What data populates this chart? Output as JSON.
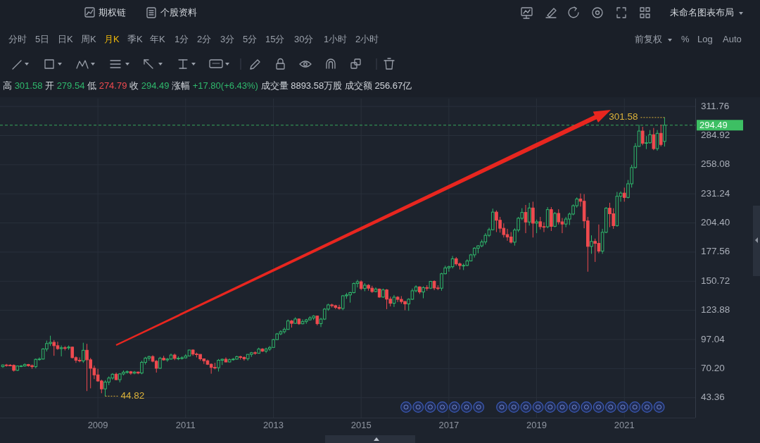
{
  "chart_data": {
    "type": "candlestick",
    "subtitle": "高 301.58 开 279.54 低 274.79 收 294.49 涨幅 +17.80(+6.43%) 成交量 8893.58万股 成交额 256.67亿",
    "x": [
      "2006-11",
      "2006-12",
      "2007-01",
      "2007-02",
      "2007-03",
      "2007-04",
      "2007-05",
      "2007-06",
      "2007-07",
      "2007-08",
      "2007-09",
      "2007-10",
      "2007-11",
      "2007-12",
      "2008-01",
      "2008-02",
      "2008-03",
      "2008-04",
      "2008-05",
      "2008-06",
      "2008-07",
      "2008-08",
      "2008-09",
      "2008-10",
      "2008-11",
      "2008-12",
      "2009-01",
      "2009-02",
      "2009-03",
      "2009-04",
      "2009-05",
      "2009-06",
      "2009-07",
      "2009-08",
      "2009-09",
      "2009-10",
      "2009-11",
      "2009-12",
      "2010-01",
      "2010-02",
      "2010-03",
      "2010-04",
      "2010-05",
      "2010-06",
      "2010-07",
      "2010-08",
      "2010-09",
      "2010-10",
      "2010-11",
      "2010-12",
      "2011-01",
      "2011-02",
      "2011-03",
      "2011-04",
      "2011-05",
      "2011-06",
      "2011-07",
      "2011-08",
      "2011-09",
      "2011-10",
      "2011-11",
      "2011-12",
      "2012-01",
      "2012-02",
      "2012-03",
      "2012-04",
      "2012-05",
      "2012-06",
      "2012-07",
      "2012-08",
      "2012-09",
      "2012-10",
      "2012-11",
      "2012-12",
      "2013-01",
      "2013-02",
      "2013-03",
      "2013-04",
      "2013-05",
      "2013-06",
      "2013-07",
      "2013-08",
      "2013-09",
      "2013-10",
      "2013-11",
      "2013-12",
      "2014-01",
      "2014-02",
      "2014-03",
      "2014-04",
      "2014-05",
      "2014-06",
      "2014-07",
      "2014-08",
      "2014-09",
      "2014-10",
      "2014-11",
      "2014-12",
      "2015-01",
      "2015-02",
      "2015-03",
      "2015-04",
      "2015-05",
      "2015-06",
      "2015-07",
      "2015-08",
      "2015-09",
      "2015-10",
      "2015-11",
      "2015-12",
      "2016-01",
      "2016-02",
      "2016-03",
      "2016-04",
      "2016-05",
      "2016-06",
      "2016-07",
      "2016-08",
      "2016-09",
      "2016-10",
      "2016-11",
      "2016-12",
      "2017-01",
      "2017-02",
      "2017-03",
      "2017-04",
      "2017-05",
      "2017-06",
      "2017-07",
      "2017-08",
      "2017-09",
      "2017-10",
      "2017-11",
      "2017-12",
      "2018-01",
      "2018-02",
      "2018-03",
      "2018-04",
      "2018-05",
      "2018-06",
      "2018-07",
      "2018-08",
      "2018-09",
      "2018-10",
      "2018-11",
      "2018-12",
      "2019-01",
      "2019-02",
      "2019-03",
      "2019-04",
      "2019-05",
      "2019-06",
      "2019-07",
      "2019-08",
      "2019-09",
      "2019-10",
      "2019-11",
      "2019-12",
      "2020-01",
      "2020-02",
      "2020-03",
      "2020-04",
      "2020-05",
      "2020-06",
      "2020-07",
      "2020-08",
      "2020-09",
      "2020-10",
      "2020-11",
      "2020-12",
      "2021-01",
      "2021-02",
      "2021-03",
      "2021-04",
      "2021-05",
      "2021-06",
      "2021-07",
      "2021-08",
      "2021-09",
      "2021-10",
      "2021-11",
      "2021-12"
    ],
    "ohlc": [
      [
        72.0,
        74.0,
        71.0,
        73.5
      ],
      [
        73.5,
        74.5,
        72.0,
        73.3
      ],
      [
        73.3,
        74.3,
        72.5,
        73.2
      ],
      [
        73.2,
        74.0,
        67.5,
        68.6
      ],
      [
        68.6,
        73.0,
        68.0,
        72.6
      ],
      [
        72.6,
        73.5,
        71.5,
        72.6
      ],
      [
        72.6,
        75.0,
        72.0,
        73.9
      ],
      [
        73.9,
        74.5,
        72.0,
        72.9
      ],
      [
        72.9,
        74.0,
        70.0,
        72.0
      ],
      [
        72.0,
        79.5,
        70.5,
        78.7
      ],
      [
        78.7,
        80.5,
        77.5,
        79.0
      ],
      [
        79.0,
        89.0,
        78.5,
        88.3
      ],
      [
        88.3,
        96.0,
        86.0,
        93.3
      ],
      [
        93.3,
        100.5,
        91.0,
        94.4
      ],
      [
        94.4,
        96.5,
        82.0,
        91.3
      ],
      [
        91.3,
        95.0,
        87.5,
        88.6
      ],
      [
        88.6,
        91.5,
        81.5,
        89.4
      ],
      [
        89.4,
        91.0,
        87.0,
        89.3
      ],
      [
        89.3,
        91.5,
        87.5,
        90.0
      ],
      [
        90.0,
        90.5,
        79.5,
        80.3
      ],
      [
        80.3,
        81.5,
        75.5,
        77.9
      ],
      [
        77.9,
        80.5,
        76.0,
        77.3
      ],
      [
        77.3,
        94.0,
        75.5,
        87.1
      ],
      [
        87.1,
        93.0,
        49.5,
        78.3
      ],
      [
        78.3,
        80.0,
        52.0,
        70.5
      ],
      [
        70.5,
        73.0,
        60.5,
        64.4
      ],
      [
        64.4,
        70.0,
        58.0,
        58.8
      ],
      [
        58.8,
        60.0,
        47.5,
        51.5
      ],
      [
        51.5,
        59.5,
        44.82,
        57.8
      ],
      [
        57.8,
        63.0,
        55.0,
        61.5
      ],
      [
        61.5,
        66.0,
        60.0,
        65.0
      ],
      [
        65.0,
        66.5,
        59.5,
        60.0
      ],
      [
        60.0,
        66.0,
        57.5,
        65.3
      ],
      [
        65.3,
        68.5,
        64.0,
        66.9
      ],
      [
        66.9,
        68.5,
        65.5,
        67.3
      ],
      [
        67.3,
        68.0,
        64.5,
        66.0
      ],
      [
        66.0,
        68.0,
        65.0,
        67.0
      ],
      [
        67.0,
        67.5,
        65.0,
        66.1
      ],
      [
        66.1,
        77.5,
        65.0,
        76.0
      ],
      [
        76.0,
        81.0,
        74.0,
        79.9
      ],
      [
        79.9,
        82.0,
        77.5,
        81.3
      ],
      [
        81.3,
        82.5,
        76.0,
        77.0
      ],
      [
        77.0,
        78.0,
        66.5,
        70.5
      ],
      [
        70.5,
        81.0,
        70.0,
        79.7
      ],
      [
        79.7,
        82.0,
        77.5,
        78.2
      ],
      [
        78.2,
        80.0,
        76.5,
        79.0
      ],
      [
        79.0,
        84.0,
        78.5,
        82.7
      ],
      [
        82.7,
        84.0,
        78.0,
        79.6
      ],
      [
        79.6,
        81.5,
        78.0,
        79.7
      ],
      [
        79.7,
        81.5,
        78.5,
        80.1
      ],
      [
        80.1,
        83.5,
        79.5,
        81.8
      ],
      [
        81.8,
        87.5,
        81.5,
        87.3
      ],
      [
        87.3,
        88.0,
        82.0,
        83.6
      ],
      [
        83.6,
        85.0,
        80.5,
        83.3
      ],
      [
        83.3,
        83.5,
        77.5,
        79.2
      ],
      [
        79.2,
        79.5,
        74.5,
        77.4
      ],
      [
        77.4,
        78.5,
        73.5,
        74.2
      ],
      [
        74.2,
        75.0,
        65.5,
        71.3
      ],
      [
        71.3,
        75.5,
        69.5,
        71.0
      ],
      [
        71.0,
        79.0,
        67.5,
        77.9
      ],
      [
        77.9,
        79.5,
        73.5,
        78.8
      ],
      [
        78.8,
        80.5,
        76.0,
        76.3
      ],
      [
        76.3,
        79.5,
        76.0,
        78.4
      ],
      [
        78.4,
        80.0,
        77.5,
        78.9
      ],
      [
        78.9,
        82.0,
        78.5,
        81.2
      ],
      [
        81.2,
        82.0,
        78.5,
        80.5
      ],
      [
        80.5,
        81.5,
        77.5,
        79.3
      ],
      [
        79.3,
        83.5,
        77.5,
        83.3
      ],
      [
        83.3,
        85.5,
        81.0,
        84.8
      ],
      [
        84.8,
        86.0,
        83.0,
        84.3
      ],
      [
        84.3,
        89.5,
        84.0,
        88.2
      ],
      [
        88.2,
        89.0,
        85.5,
        86.3
      ],
      [
        86.3,
        89.5,
        84.5,
        88.2
      ],
      [
        88.2,
        91.0,
        86.5,
        89.7
      ],
      [
        89.7,
        97.5,
        89.5,
        96.9
      ],
      [
        96.9,
        103.0,
        96.5,
        102.2
      ],
      [
        102.2,
        105.5,
        101.0,
        104.2
      ],
      [
        104.2,
        108.0,
        102.5,
        106.3
      ],
      [
        106.3,
        115.5,
        106.0,
        114.1
      ],
      [
        114.1,
        115.0,
        108.0,
        111.9
      ],
      [
        111.9,
        117.5,
        111.5,
        115.9
      ],
      [
        115.9,
        116.5,
        110.5,
        111.5
      ],
      [
        111.5,
        115.5,
        111.0,
        113.5
      ],
      [
        113.5,
        116.0,
        111.5,
        115.1
      ],
      [
        115.1,
        118.5,
        114.5,
        116.9
      ],
      [
        116.9,
        119.5,
        115.0,
        118.6
      ],
      [
        118.6,
        119.0,
        110.0,
        111.6
      ],
      [
        111.6,
        117.0,
        108.5,
        115.8
      ],
      [
        115.8,
        126.0,
        115.0,
        125.0
      ],
      [
        125.0,
        130.0,
        123.5,
        128.9
      ],
      [
        128.9,
        130.0,
        126.5,
        128.2
      ],
      [
        128.2,
        129.0,
        125.0,
        126.6
      ],
      [
        126.6,
        129.0,
        124.5,
        125.6
      ],
      [
        125.6,
        138.0,
        124.0,
        137.3
      ],
      [
        137.3,
        140.0,
        134.5,
        138.1
      ],
      [
        138.1,
        141.0,
        131.0,
        140.2
      ],
      [
        140.2,
        149.5,
        139.5,
        148.6
      ],
      [
        148.6,
        152.0,
        145.0,
        150.2
      ],
      [
        150.2,
        151.5,
        142.5,
        144.0
      ],
      [
        144.0,
        149.0,
        141.5,
        147.0
      ],
      [
        147.0,
        148.0,
        142.0,
        144.3
      ],
      [
        144.3,
        146.5,
        140.0,
        141.2
      ],
      [
        141.2,
        145.0,
        140.5,
        143.5
      ],
      [
        143.5,
        144.0,
        135.5,
        136.1
      ],
      [
        136.1,
        144.0,
        135.5,
        142.7
      ],
      [
        142.7,
        143.5,
        125.0,
        134.2
      ],
      [
        134.2,
        136.5,
        127.5,
        130.4
      ],
      [
        130.4,
        138.0,
        127.0,
        136.0
      ],
      [
        136.0,
        137.0,
        131.5,
        134.0
      ],
      [
        134.0,
        137.0,
        130.0,
        132.0
      ],
      [
        132.0,
        132.5,
        124.0,
        129.8
      ],
      [
        129.8,
        135.0,
        123.5,
        134.1
      ],
      [
        134.1,
        144.0,
        133.5,
        141.9
      ],
      [
        141.9,
        147.0,
        140.5,
        145.5
      ],
      [
        145.5,
        146.0,
        139.0,
        140.8
      ],
      [
        140.8,
        146.0,
        135.0,
        144.8
      ],
      [
        144.8,
        147.0,
        142.0,
        144.3
      ],
      [
        144.3,
        151.0,
        143.5,
        150.6
      ],
      [
        150.6,
        151.5,
        142.5,
        144.5
      ],
      [
        144.5,
        147.0,
        142.5,
        144.3
      ],
      [
        144.3,
        158.5,
        142.0,
        157.6
      ],
      [
        157.6,
        165.0,
        157.0,
        163.0
      ],
      [
        163.0,
        165.0,
        159.5,
        164.1
      ],
      [
        164.1,
        174.0,
        162.5,
        171.4
      ],
      [
        171.4,
        173.0,
        165.0,
        166.7
      ],
      [
        166.7,
        168.0,
        161.5,
        165.2
      ],
      [
        165.2,
        167.0,
        161.0,
        165.3
      ],
      [
        165.3,
        171.0,
        164.5,
        169.4
      ],
      [
        169.4,
        176.0,
        169.0,
        175.0
      ],
      [
        175.0,
        182.0,
        172.5,
        181.2
      ],
      [
        181.2,
        184.0,
        176.5,
        183.3
      ],
      [
        183.3,
        189.0,
        182.0,
        186.9
      ],
      [
        186.9,
        195.0,
        184.5,
        193.0
      ],
      [
        193.0,
        200.0,
        191.5,
        198.2
      ],
      [
        198.2,
        217.6,
        197.5,
        214.4
      ],
      [
        214.4,
        216.0,
        196.0,
        206.9
      ],
      [
        206.9,
        210.0,
        195.5,
        199.5
      ],
      [
        199.5,
        204.0,
        191.0,
        193.7
      ],
      [
        193.7,
        199.0,
        188.0,
        191.5
      ],
      [
        191.5,
        196.0,
        185.5,
        186.7
      ],
      [
        186.7,
        199.5,
        183.5,
        197.9
      ],
      [
        197.9,
        210.0,
        196.0,
        208.7
      ],
      [
        208.7,
        218.0,
        207.0,
        214.1
      ],
      [
        214.1,
        221.0,
        195.0,
        205.3
      ],
      [
        205.3,
        223.0,
        202.0,
        218.2
      ],
      [
        218.2,
        224.0,
        191.0,
        204.2
      ],
      [
        204.2,
        207.5,
        195.0,
        205.5
      ],
      [
        205.5,
        210.0,
        198.5,
        201.0
      ],
      [
        201.0,
        205.0,
        196.0,
        200.9
      ],
      [
        200.9,
        219.0,
        199.5,
        216.7
      ],
      [
        216.7,
        219.0,
        197.0,
        201.3
      ],
      [
        201.3,
        214.5,
        200.5,
        213.2
      ],
      [
        213.2,
        217.0,
        203.0,
        205.4
      ],
      [
        205.4,
        209.0,
        195.0,
        203.4
      ],
      [
        203.4,
        210.0,
        200.5,
        208.0
      ],
      [
        208.0,
        214.0,
        202.5,
        212.6
      ],
      [
        212.6,
        221.5,
        211.5,
        220.3
      ],
      [
        220.3,
        228.0,
        218.5,
        226.5
      ],
      [
        226.5,
        231.6,
        219.5,
        224.4
      ],
      [
        224.4,
        231.0,
        199.5,
        206.3
      ],
      [
        206.3,
        210.0,
        159.5,
        182.8
      ],
      [
        182.8,
        193.0,
        176.0,
        187.4
      ],
      [
        187.4,
        190.0,
        168.5,
        185.6
      ],
      [
        185.6,
        203.0,
        176.5,
        178.5
      ],
      [
        178.5,
        199.0,
        176.0,
        195.8
      ],
      [
        195.8,
        219.0,
        195.0,
        218.0
      ],
      [
        218.0,
        223.0,
        200.5,
        212.9
      ],
      [
        212.9,
        218.0,
        199.0,
        201.9
      ],
      [
        201.9,
        233.0,
        201.0,
        229.0
      ],
      [
        229.0,
        233.5,
        224.0,
        231.9
      ],
      [
        231.9,
        237.0,
        224.0,
        227.9
      ],
      [
        227.9,
        244.0,
        227.0,
        240.5
      ],
      [
        240.5,
        258.0,
        237.0,
        255.5
      ],
      [
        255.5,
        278.0,
        254.5,
        275.0
      ],
      [
        275.0,
        295.0,
        274.5,
        289.1
      ],
      [
        289.1,
        293.0,
        276.0,
        277.9
      ],
      [
        277.9,
        284.5,
        272.5,
        278.3
      ],
      [
        278.3,
        290.0,
        277.5,
        285.7
      ],
      [
        285.7,
        292.0,
        271.5,
        272.9
      ],
      [
        272.9,
        290.0,
        271.0,
        287.0
      ],
      [
        287.0,
        295.0,
        275.0,
        276.7
      ],
      [
        279.54,
        301.58,
        274.79,
        294.49
      ]
    ],
    "xlim": [
      "2006-10-08",
      "2022-08-13"
    ],
    "xticks": [
      "2009",
      "2011",
      "2013",
      "2015",
      "2017",
      "2019",
      "2021"
    ],
    "ylim": [
      25,
      319
    ],
    "yticks": [
      43.36,
      {
        "value": 70.2,
        "label": "70.20"
      },
      97.04,
      123.88,
      150.72,
      177.56,
      {
        "value": 204.4,
        "label": "204.40"
      },
      231.24,
      258.08,
      284.92,
      311.76
    ],
    "grid": true,
    "ref_lines": [
      {
        "axis": "y",
        "value": 294.49,
        "label": "294.49",
        "color": "#3dbf63",
        "line_style": "dashed"
      }
    ],
    "annotations": [
      "期权链",
      "个股资料",
      "未命名图表布局",
      "分时",
      "5日",
      "日K",
      "周K",
      "月K",
      "季K",
      "年K",
      "1分",
      "2分",
      "3分",
      "5分",
      "15分",
      "30分",
      "1小时",
      "2小时",
      "前复权",
      "%",
      "Log",
      "Auto",
      {
        "text": "301.58",
        "x": "2021-12",
        "y": 301.58
      },
      {
        "text": "44.82",
        "x": "2009-03",
        "y": 44.82
      }
    ]
  }
}
